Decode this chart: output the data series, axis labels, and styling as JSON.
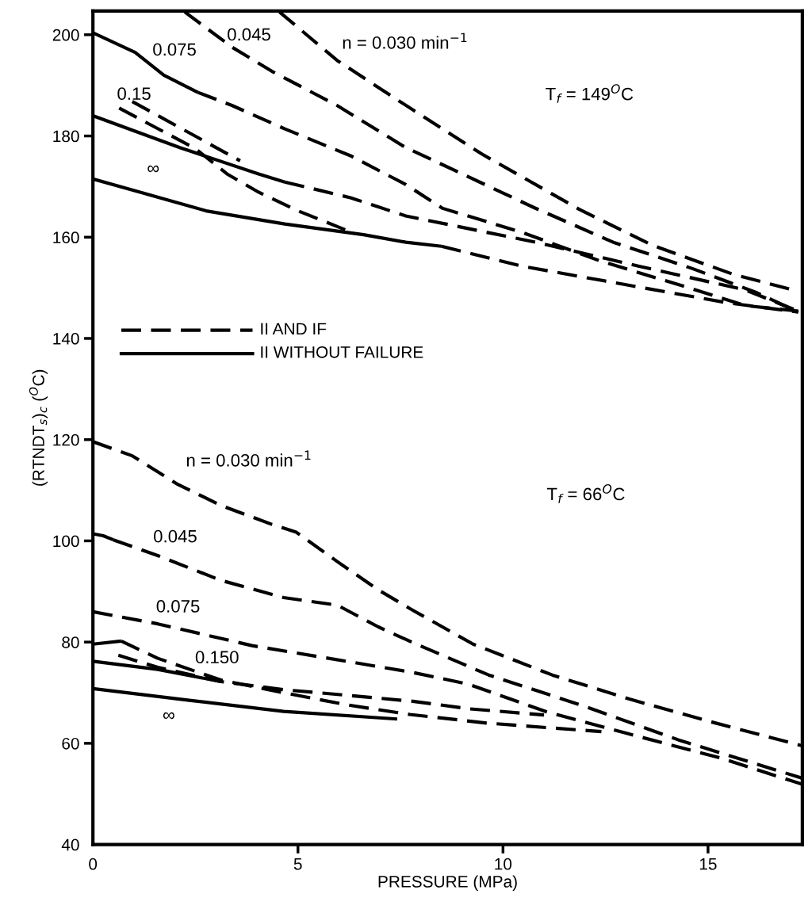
{
  "chart_data": {
    "type": "line",
    "xlabel": "PRESSURE (MPa)",
    "ylabel": "(RTNDT$_{s}$)$_{c}$ ($^{O}$C)",
    "xlim": [
      0,
      17.3
    ],
    "xticks": [
      0,
      5,
      10,
      15
    ],
    "ylim": [
      40,
      204.7
    ],
    "yticks": [
      40,
      60,
      80,
      100,
      120,
      140,
      160,
      180,
      200
    ],
    "grid": false,
    "marker": "none",
    "series": [
      {
        "color": "#000000",
        "line_style": "dashed",
        "x": [
          4.55,
          5.96,
          7.24,
          9.49,
          11.86,
          13.65,
          15.6,
          17.2
        ],
        "values": [
          204.5,
          194.9,
          188.1,
          176.4,
          165.5,
          158.4,
          152.7,
          149.3
        ]
      },
      {
        "color": "#000000",
        "line_style": "dashed",
        "x": [
          2.24,
          3.4,
          4.36,
          5.96,
          7.63,
          8.85,
          10.77,
          12.69,
          14.62,
          16.2,
          17.2
        ],
        "values": [
          204.5,
          197.5,
          192.8,
          186,
          177.7,
          173.1,
          165.8,
          159,
          153.8,
          149,
          145.2
        ]
      },
      {
        "color": "#000000",
        "line_style": "solid",
        "x": [
          0,
          1.03,
          1.73,
          2.56
        ],
        "values": [
          200.4,
          196.5,
          192,
          188.6
        ]
      },
      {
        "color": "#000000",
        "line_style": "dashed",
        "x": [
          2.56,
          3.4,
          4.68,
          6.28,
          7.63,
          8.53,
          10.45,
          12.37,
          14.29,
          15.9,
          17.2
        ],
        "values": [
          188.6,
          186,
          181.4,
          176.1,
          170.4,
          165.7,
          161,
          155.3,
          150.6,
          146.5,
          145.4
        ]
      },
      {
        "color": "#000000",
        "line_style": "dashed",
        "x": [
          0.96,
          3.59
        ],
        "values": [
          186.8,
          175.1
        ]
      },
      {
        "color": "#000000",
        "line_style": "dashed",
        "x": [
          0.64,
          2.5,
          3.27,
          4.04,
          5,
          5.96,
          6.3
        ],
        "values": [
          185.5,
          177.5,
          172.5,
          168.9,
          165.2,
          162.1,
          161.0
        ]
      },
      {
        "color": "#000000",
        "line_style": "solid",
        "x": [
          0,
          2.12,
          4.04,
          4.68
        ],
        "values": [
          184,
          177.7,
          172.5,
          170.9
        ]
      },
      {
        "color": "#000000",
        "line_style": "dashed",
        "x": [
          4.68,
          6.28,
          7.63,
          10.8,
          13.3,
          15.9,
          17.2
        ],
        "values": [
          170.9,
          167.8,
          164.2,
          159,
          154.3,
          149.6,
          145.4
        ]
      },
      {
        "color": "#000000",
        "line_style": "solid",
        "x": [
          0,
          1.15,
          2.76,
          4.68,
          6.6,
          7.63,
          8.5
        ],
        "values": [
          171.5,
          168.9,
          165.2,
          162.6,
          160.5,
          159,
          158.2
        ]
      },
      {
        "color": "#000000",
        "line_style": "dashed",
        "x": [
          8.5,
          10.45,
          13,
          15.5,
          17.2
        ],
        "values": [
          158.2,
          154.3,
          150.6,
          147,
          145.2
        ]
      },
      {
        "color": "#000000",
        "line_style": "dashed",
        "x": [
          0,
          0.96,
          2.04,
          3.12,
          4.35,
          4.96,
          5.96,
          6.96,
          7.8,
          9.27,
          11.2,
          13.1,
          15,
          17.3
        ],
        "values": [
          119.6,
          116.8,
          111.3,
          107,
          103.3,
          101.7,
          95.9,
          90.3,
          86.3,
          79.6,
          73.5,
          68.7,
          64.4,
          59.5
        ]
      },
      {
        "color": "#000000",
        "line_style": "solid",
        "x": [
          0,
          0.25,
          0.5
        ],
        "values": [
          101.4,
          101,
          100.2
        ]
      },
      {
        "color": "#000000",
        "line_style": "dashed",
        "x": [
          0.5,
          1.58,
          3.12,
          4.65,
          5.96,
          6.96,
          7.8,
          9.65,
          11.96,
          14.27,
          17.3
        ],
        "values": [
          100.2,
          97.1,
          92.2,
          88.8,
          87.3,
          83,
          79.9,
          73.5,
          67.4,
          60.7,
          53.1
        ]
      },
      {
        "color": "#000000",
        "line_style": "dashed",
        "x": [
          0,
          1.58,
          3.88,
          6.19,
          7.8,
          9.15,
          11.07,
          13,
          15.3,
          17.3
        ],
        "values": [
          86,
          83.6,
          79.3,
          76.2,
          74,
          71.7,
          66.2,
          62,
          57.1,
          51.9
        ]
      },
      {
        "color": "#000000",
        "line_style": "solid",
        "x": [
          0,
          0.69
        ],
        "values": [
          79.6,
          80.2
        ]
      },
      {
        "color": "#000000",
        "line_style": "dashed",
        "x": [
          0.69,
          1.58,
          3.12,
          4.65,
          6.19,
          7.73,
          9.6,
          12.4
        ],
        "values": [
          80.2,
          76.8,
          72.5,
          70,
          67.6,
          65.7,
          64,
          62.3
        ]
      },
      {
        "color": "#000000",
        "line_style": "dashed",
        "x": [
          0.62,
          1.58,
          3.12,
          4.65,
          6.19,
          7.8,
          9.2,
          11
        ],
        "values": [
          77.4,
          75,
          72.2,
          70.6,
          69.5,
          68.3,
          66.8,
          65.6
        ]
      },
      {
        "color": "#000000",
        "line_style": "solid",
        "x": [
          0,
          1.58,
          3.12
        ],
        "values": [
          76.2,
          74.6,
          72.2
        ]
      },
      {
        "color": "#000000",
        "line_style": "solid",
        "x": [
          0,
          2.35,
          4.65,
          7.42
        ],
        "values": [
          70.8,
          68.5,
          66.3,
          64.8
        ]
      }
    ],
    "annotations": [
      "n = 0.030 min$^{−1}$",
      "0.045",
      "0.075",
      "0.15",
      "∞",
      "T$_{f}$ = 149$^{O}$C",
      "n = 0.030 min$^{−1}$",
      "0.045",
      "0.075",
      "0.150",
      "∞",
      "T$_{f}$ = 66$^{O}$C",
      "II AND IF",
      "II WITHOUT FAILURE"
    ]
  }
}
